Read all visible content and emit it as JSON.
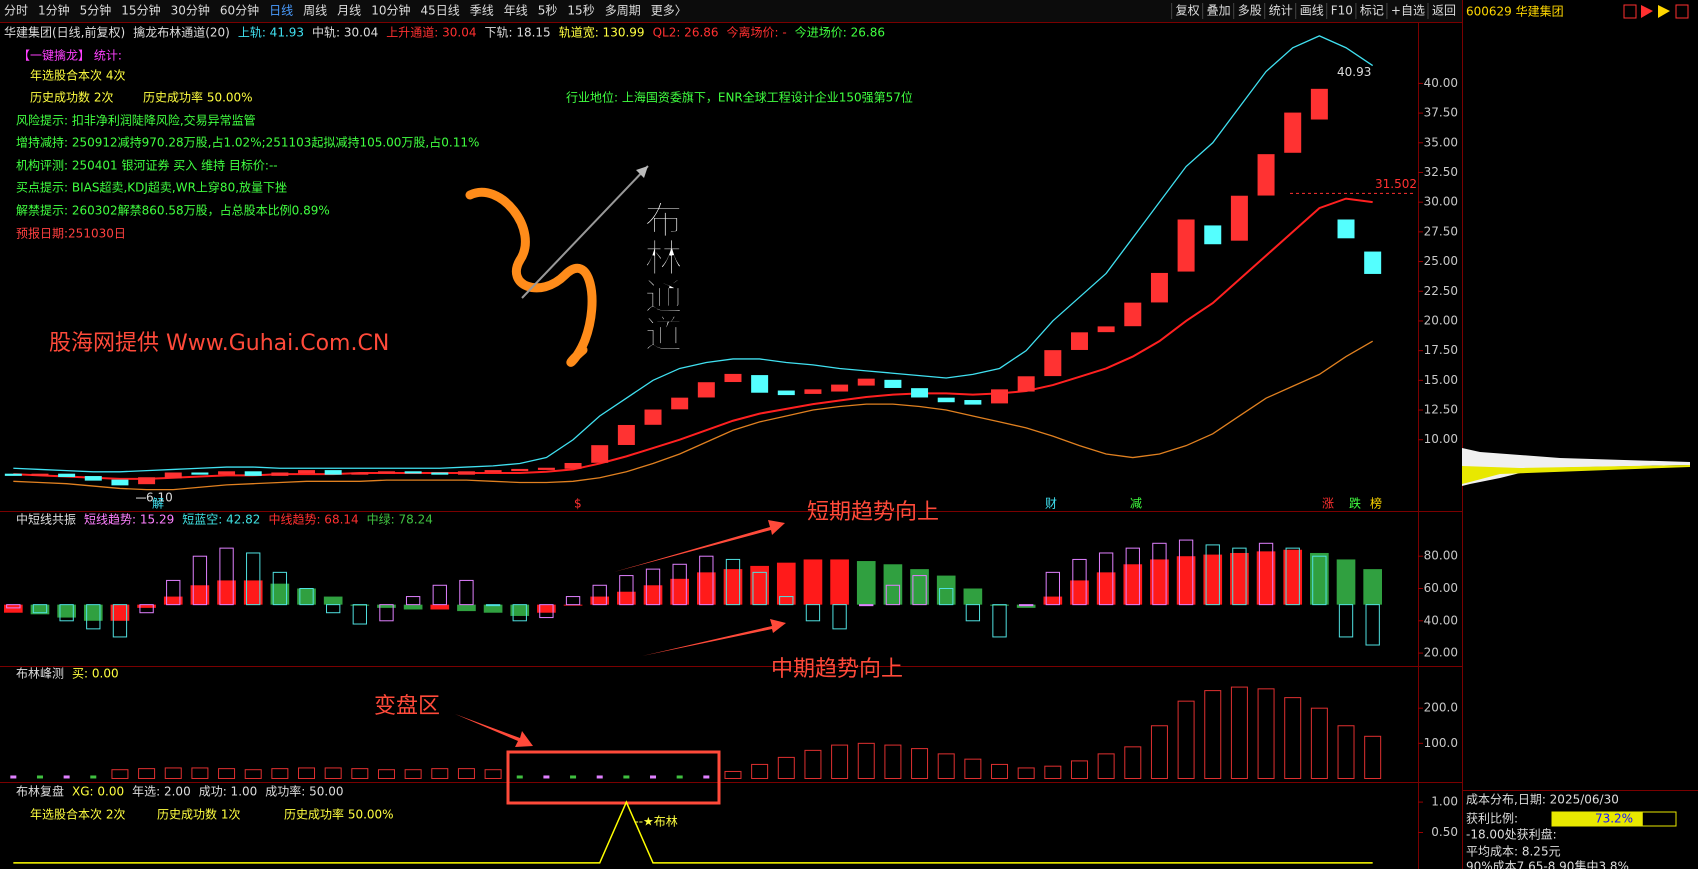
{
  "toolbar": {
    "periods": [
      "分时",
      "1分钟",
      "5分钟",
      "15分钟",
      "30分钟",
      "60分钟",
      "日线",
      "周线",
      "月线",
      "10分钟",
      "45日线",
      "季线",
      "年线",
      "5秒",
      "15秒",
      "多周期",
      "更多〉"
    ],
    "tools": [
      "复权",
      "叠加",
      "多股",
      "统计",
      "画线",
      "F10",
      "标记",
      "+自选",
      "返回"
    ]
  },
  "symbol": "600629 华建集团",
  "main": {
    "type": "candlestick",
    "info": [
      "华建集团(日线,前复权)",
      "擒龙布林通道(20)",
      "上轨: 41.93",
      "中轨: 30.04",
      "上升通道: 30.04",
      "下轨: 18.15",
      "轨道宽: 130.99",
      "QL2: 26.86",
      "今离场价: -",
      "今进场价: 26.86"
    ],
    "notes": [
      "【一键擒龙】 统计:",
      "年选股合本次 4次",
      "历史成功数 2次",
      "历史成功率 50.00%",
      "风险提示: 扣非净利润陡降风险,交易异常监管",
      "增持减持: 250912减持970.28万股,占1.02%;251103起拟减持105.00万股,占0.11%",
      "机构评测: 250401 银河证券 买入 维持 目标价:--",
      "买点提示: BIAS超卖,KDJ超卖,WR上穿80,放量下挫",
      "解禁提示: 260302解禁860.58万股，占总股本比例0.89%",
      "预报日期:251030日"
    ],
    "industry": "行业地位: 上海国资委旗下，ENR全球工程设计企业150强第57位",
    "watermark": "股海网提供 Www.Guhai.Com.CN",
    "logo": "布林通道",
    "open": [
      7.1,
      7.0,
      7.1,
      6.9,
      6.6,
      6.3,
      6.8,
      7.2,
      7.1,
      7.3,
      7.0,
      7.2,
      7.4,
      7.1,
      7.2,
      7.3,
      7.2,
      7.1,
      7.3,
      7.4,
      7.5,
      7.6,
      8.1,
      9.6,
      11.3,
      12.6,
      13.6,
      14.9,
      15.4,
      14.1,
      13.9,
      14.1,
      14.6,
      15.0,
      14.3,
      13.5,
      13.3,
      13.1,
      14.1,
      15.4,
      17.6,
      19.1,
      19.6,
      21.6,
      24.2,
      28.0,
      26.8,
      30.6,
      34.2,
      37.0,
      28.5,
      25.8
    ],
    "close": [
      7.0,
      7.1,
      6.9,
      6.6,
      6.2,
      6.8,
      7.2,
      7.1,
      7.3,
      7.0,
      7.2,
      7.4,
      7.1,
      7.2,
      7.3,
      7.2,
      7.1,
      7.3,
      7.4,
      7.5,
      7.6,
      8.0,
      9.5,
      11.2,
      12.5,
      13.5,
      14.8,
      15.5,
      14.0,
      13.8,
      14.2,
      14.6,
      15.1,
      14.4,
      13.6,
      13.2,
      13.0,
      14.2,
      15.3,
      17.5,
      19.0,
      19.5,
      21.5,
      24.0,
      28.5,
      26.5,
      30.5,
      34.0,
      37.5,
      39.5,
      27.0,
      24.0
    ],
    "bands": [
      {
        "color": "#40e0f0",
        "values": [
          7.6,
          7.5,
          7.4,
          7.3,
          7.3,
          7.4,
          7.5,
          7.6,
          7.7,
          7.7,
          7.6,
          7.6,
          7.6,
          7.6,
          7.6,
          7.6,
          7.6,
          7.7,
          7.8,
          8.0,
          8.5,
          10,
          12,
          13.5,
          15,
          16.0,
          16.5,
          16.8,
          16.8,
          16.5,
          16.3,
          16.0,
          15.8,
          15.6,
          15.4,
          15.2,
          15.5,
          16.0,
          17.5,
          20,
          22,
          24,
          27,
          30,
          33,
          35,
          38,
          41,
          43,
          44,
          43,
          41.5
        ]
      },
      {
        "color": "#ff2020",
        "values": [
          7.1,
          7.0,
          6.9,
          6.8,
          6.7,
          6.7,
          6.8,
          6.9,
          7.0,
          7.0,
          7.1,
          7.1,
          7.1,
          7.2,
          7.2,
          7.2,
          7.2,
          7.2,
          7.2,
          7.2,
          7.3,
          7.5,
          8.0,
          8.6,
          9.3,
          10.0,
          10.8,
          11.6,
          12.2,
          12.6,
          13.0,
          13.3,
          13.6,
          13.8,
          13.9,
          13.9,
          13.8,
          13.9,
          14.1,
          14.6,
          15.3,
          16.0,
          17.0,
          18.3,
          20.0,
          21.5,
          23.5,
          25.5,
          27.5,
          29.5,
          30.3,
          30.0
        ]
      },
      {
        "color": "#e08020",
        "values": [
          6.5,
          6.4,
          6.3,
          6.1,
          5.9,
          5.8,
          5.8,
          6.0,
          6.2,
          6.3,
          6.4,
          6.5,
          6.5,
          6.5,
          6.6,
          6.6,
          6.6,
          6.6,
          6.5,
          6.4,
          6.4,
          6.5,
          6.8,
          7.3,
          8.0,
          8.8,
          9.8,
          10.8,
          11.5,
          12.0,
          12.5,
          12.8,
          13.0,
          13.0,
          12.8,
          12.5,
          12.0,
          11.5,
          11.0,
          10.3,
          9.5,
          8.8,
          8.5,
          8.8,
          9.5,
          10.5,
          12,
          13.5,
          14.5,
          15.5,
          17,
          18.3
        ]
      }
    ],
    "ylim": [
      4,
      45
    ],
    "yticks": [
      {
        "value": 10,
        "label": "10.00"
      },
      {
        "value": 12.5,
        "label": "12.50"
      },
      {
        "value": 15,
        "label": "15.00"
      },
      {
        "value": 17.5,
        "label": "17.50"
      },
      {
        "value": 20,
        "label": "20.00"
      },
      {
        "value": 22.5,
        "label": "22.50"
      },
      {
        "value": 25,
        "label": "25.00"
      },
      {
        "value": 27.5,
        "label": "27.50"
      },
      {
        "value": 30,
        "label": "30.00"
      },
      {
        "value": 32.5,
        "label": "32.50"
      },
      {
        "value": 35,
        "label": "35.00"
      },
      {
        "value": 37.5,
        "label": "37.50"
      },
      {
        "value": 40,
        "label": "40.00"
      }
    ],
    "high_label": 40.93,
    "low_label": {
      "value": 6.1,
      "label": "6.10"
    },
    "level_label": 31.502,
    "markers": [
      "解",
      "$",
      "财",
      "减",
      "涨",
      "跌",
      "榜"
    ]
  },
  "trend": {
    "header": [
      "中短线共振",
      "短线趋势: 15.29",
      "短蓝空: 42.82",
      "中线趋势: 68.14",
      "中绿: 78.24"
    ],
    "short": [
      48,
      45,
      40,
      35,
      30,
      45,
      65,
      80,
      85,
      82,
      70,
      60,
      45,
      38,
      40,
      55,
      62,
      65,
      50,
      40,
      42,
      55,
      62,
      68,
      72,
      75,
      80,
      78,
      70,
      55,
      40,
      35,
      50,
      62,
      68,
      60,
      40,
      30,
      50,
      70,
      78,
      82,
      85,
      88,
      90,
      87,
      85,
      88,
      85,
      80,
      30,
      25
    ],
    "mid": [
      45,
      44,
      42,
      40,
      40,
      48,
      55,
      62,
      65,
      65,
      63,
      60,
      55,
      50,
      48,
      47,
      47,
      46,
      45,
      43,
      45,
      50,
      55,
      58,
      62,
      66,
      70,
      72,
      74,
      76,
      78,
      78,
      77,
      75,
      72,
      68,
      60,
      50,
      48,
      55,
      65,
      70,
      75,
      78,
      80,
      81,
      82,
      83,
      84,
      82,
      78,
      72
    ],
    "ylim": [
      12,
      108
    ],
    "yticks": [
      {
        "value": 20,
        "label": "20.00"
      },
      {
        "value": 40,
        "label": "40.00"
      },
      {
        "value": 60,
        "label": "60.00"
      },
      {
        "value": 80,
        "label": "80.00"
      }
    ]
  },
  "peak": {
    "header": [
      "布林峰测",
      "买: 0.00"
    ],
    "values": [
      0,
      0,
      0,
      0,
      25,
      28,
      30,
      30,
      28,
      25,
      28,
      30,
      30,
      28,
      25,
      25,
      28,
      28,
      25,
      0,
      0,
      0,
      0,
      0,
      0,
      0,
      0,
      20,
      40,
      60,
      80,
      95,
      100,
      95,
      85,
      70,
      55,
      40,
      30,
      35,
      50,
      70,
      90,
      150,
      220,
      250,
      260,
      255,
      230,
      200,
      150,
      120
    ],
    "ylim": [
      -10,
      320
    ],
    "yticks": [
      {
        "value": 100,
        "label": "100.0"
      },
      {
        "value": 200,
        "label": "200.0"
      }
    ]
  },
  "review": {
    "header": [
      "布林复盘",
      "XG: 0.00",
      "年选: 2.00",
      "成功: 1.00",
      "成功率: 50.00"
    ],
    "stats": [
      "年选股合本次 2次",
      "历史成功数 1次",
      "历史成功率 50.00%"
    ],
    "signal": "--★布林",
    "values": [
      0,
      0,
      0,
      0,
      0,
      0,
      0,
      0,
      0,
      0,
      0,
      0,
      0,
      0,
      0,
      0,
      0,
      0,
      0,
      0,
      0,
      0,
      0,
      1,
      0,
      0,
      0,
      0,
      0,
      0,
      0,
      0,
      0,
      0,
      0,
      0,
      0,
      0,
      0,
      0,
      0,
      0,
      0,
      0,
      0,
      0,
      0,
      0,
      0,
      0,
      0,
      0
    ],
    "ylim": [
      -0.1,
      1.33
    ],
    "yticks": [
      {
        "value": 0.5,
        "label": "0.50"
      },
      {
        "value": 1,
        "label": "1.00"
      }
    ]
  },
  "annotations": {
    "short_term": "短期趋势向上",
    "mid_term": "中期趋势向上",
    "pivot": "变盘区"
  },
  "cost": {
    "title": "成本分布,日期: 2025/06/30",
    "profit_label": "获利比例:",
    "profit_ratio": {
      "value": 73.2,
      "label": "73.2%"
    },
    "lines": [
      "-18.00处获利盘:",
      "平均成本: 8.25元",
      "90%成本7.65-8.90集中3.8%"
    ]
  }
}
